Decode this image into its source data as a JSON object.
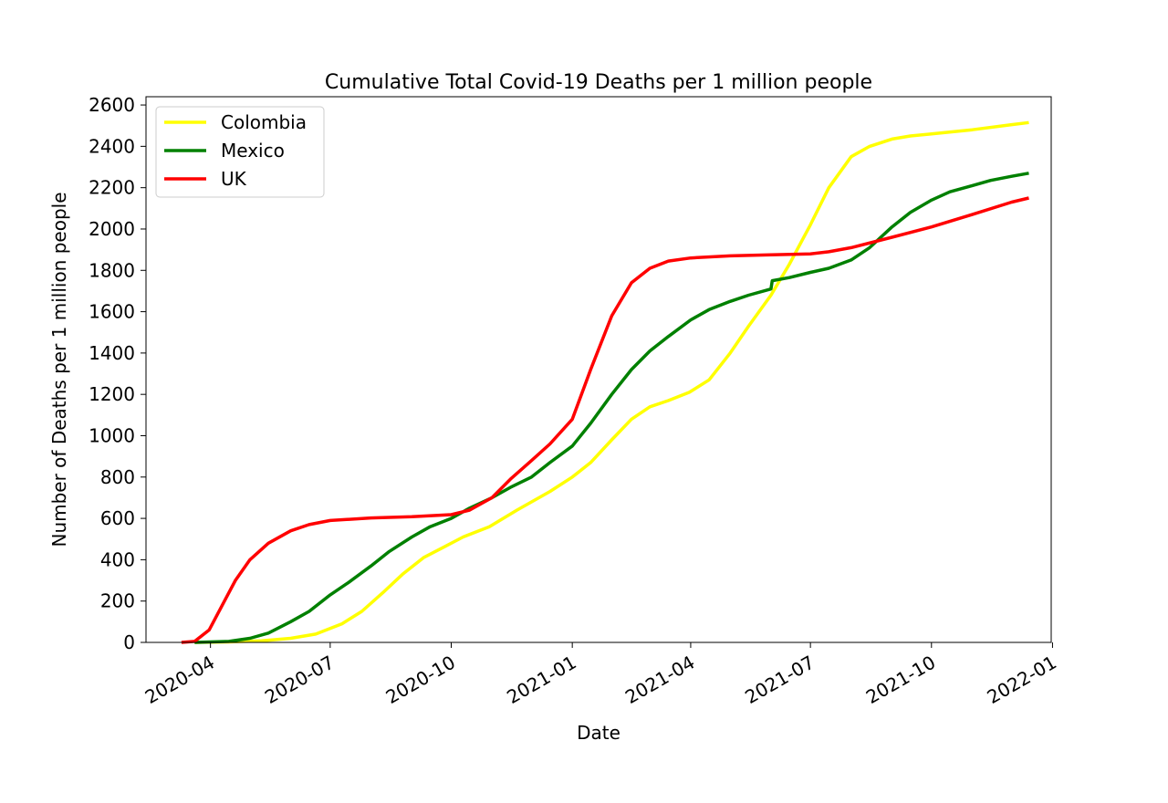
{
  "chart_data": {
    "type": "line",
    "title": "Cumulative Total Covid-19 Deaths per 1 million people",
    "xlabel": "Date",
    "ylabel": "Number of Deaths per 1 million people",
    "xlim": [
      "2020-02-12",
      "2021-12-31"
    ],
    "ylim": [
      0,
      2640
    ],
    "x_ticks": [
      "2020-04-01",
      "2020-07-01",
      "2020-10-01",
      "2021-01-01",
      "2021-04-01",
      "2021-07-01",
      "2021-10-01",
      "2022-01-01"
    ],
    "x_tick_labels": [
      "2020-04",
      "2020-07",
      "2020-10",
      "2021-01",
      "2021-04",
      "2021-07",
      "2021-10",
      "2022-01"
    ],
    "y_ticks": [
      0,
      200,
      400,
      600,
      800,
      1000,
      1200,
      1400,
      1600,
      1800,
      2000,
      2200,
      2400,
      2600
    ],
    "grid": false,
    "legend_position": "top-left",
    "series": [
      {
        "name": "Colombia",
        "color": "#ffff00",
        "points": [
          [
            "2020-03-20",
            0
          ],
          [
            "2020-04-15",
            2
          ],
          [
            "2020-05-10",
            8
          ],
          [
            "2020-06-01",
            20
          ],
          [
            "2020-06-20",
            40
          ],
          [
            "2020-07-10",
            90
          ],
          [
            "2020-07-25",
            150
          ],
          [
            "2020-08-10",
            240
          ],
          [
            "2020-08-25",
            330
          ],
          [
            "2020-09-10",
            410
          ],
          [
            "2020-09-25",
            460
          ],
          [
            "2020-10-10",
            510
          ],
          [
            "2020-10-30",
            560
          ],
          [
            "2020-11-20",
            640
          ],
          [
            "2020-12-15",
            730
          ],
          [
            "2021-01-01",
            800
          ],
          [
            "2021-01-15",
            870
          ],
          [
            "2021-01-31",
            980
          ],
          [
            "2021-02-15",
            1080
          ],
          [
            "2021-03-01",
            1140
          ],
          [
            "2021-03-15",
            1170
          ],
          [
            "2021-03-31",
            1210
          ],
          [
            "2021-04-15",
            1270
          ],
          [
            "2021-05-01",
            1400
          ],
          [
            "2021-05-15",
            1530
          ],
          [
            "2021-06-01",
            1680
          ],
          [
            "2021-06-15",
            1830
          ],
          [
            "2021-07-01",
            2020
          ],
          [
            "2021-07-15",
            2200
          ],
          [
            "2021-08-01",
            2350
          ],
          [
            "2021-08-15",
            2400
          ],
          [
            "2021-09-01",
            2435
          ],
          [
            "2021-09-15",
            2450
          ],
          [
            "2021-10-01",
            2460
          ],
          [
            "2021-11-01",
            2480
          ],
          [
            "2021-12-01",
            2505
          ],
          [
            "2021-12-14",
            2515
          ]
        ]
      },
      {
        "name": "Mexico",
        "color": "#008000",
        "points": [
          [
            "2020-03-20",
            0
          ],
          [
            "2020-04-15",
            5
          ],
          [
            "2020-05-01",
            20
          ],
          [
            "2020-05-15",
            45
          ],
          [
            "2020-06-01",
            100
          ],
          [
            "2020-06-15",
            150
          ],
          [
            "2020-07-01",
            230
          ],
          [
            "2020-07-15",
            290
          ],
          [
            "2020-08-01",
            370
          ],
          [
            "2020-08-15",
            440
          ],
          [
            "2020-09-01",
            510
          ],
          [
            "2020-09-15",
            560
          ],
          [
            "2020-10-01",
            600
          ],
          [
            "2020-10-15",
            650
          ],
          [
            "2020-11-01",
            700
          ],
          [
            "2020-11-15",
            750
          ],
          [
            "2020-12-01",
            800
          ],
          [
            "2020-12-15",
            870
          ],
          [
            "2021-01-01",
            950
          ],
          [
            "2021-01-15",
            1060
          ],
          [
            "2021-01-31",
            1200
          ],
          [
            "2021-02-15",
            1320
          ],
          [
            "2021-03-01",
            1410
          ],
          [
            "2021-03-15",
            1480
          ],
          [
            "2021-04-01",
            1560
          ],
          [
            "2021-04-15",
            1610
          ],
          [
            "2021-05-01",
            1650
          ],
          [
            "2021-05-15",
            1680
          ],
          [
            "2021-06-01",
            1710
          ],
          [
            "2021-06-02",
            1750
          ],
          [
            "2021-06-15",
            1765
          ],
          [
            "2021-07-01",
            1790
          ],
          [
            "2021-07-15",
            1810
          ],
          [
            "2021-08-01",
            1850
          ],
          [
            "2021-08-15",
            1910
          ],
          [
            "2021-09-01",
            2010
          ],
          [
            "2021-09-15",
            2080
          ],
          [
            "2021-10-01",
            2140
          ],
          [
            "2021-10-15",
            2180
          ],
          [
            "2021-11-01",
            2210
          ],
          [
            "2021-11-15",
            2235
          ],
          [
            "2021-12-01",
            2255
          ],
          [
            "2021-12-14",
            2270
          ]
        ]
      },
      {
        "name": "UK",
        "color": "#ff0000",
        "points": [
          [
            "2020-03-10",
            0
          ],
          [
            "2020-03-20",
            5
          ],
          [
            "2020-03-31",
            60
          ],
          [
            "2020-04-10",
            180
          ],
          [
            "2020-04-20",
            300
          ],
          [
            "2020-05-01",
            400
          ],
          [
            "2020-05-15",
            480
          ],
          [
            "2020-06-01",
            540
          ],
          [
            "2020-06-15",
            570
          ],
          [
            "2020-07-01",
            590
          ],
          [
            "2020-08-01",
            602
          ],
          [
            "2020-09-01",
            608
          ],
          [
            "2020-10-01",
            618
          ],
          [
            "2020-10-15",
            640
          ],
          [
            "2020-11-01",
            700
          ],
          [
            "2020-11-15",
            790
          ],
          [
            "2020-12-01",
            880
          ],
          [
            "2020-12-15",
            960
          ],
          [
            "2021-01-01",
            1080
          ],
          [
            "2021-01-15",
            1320
          ],
          [
            "2021-01-31",
            1580
          ],
          [
            "2021-02-15",
            1740
          ],
          [
            "2021-03-01",
            1810
          ],
          [
            "2021-03-15",
            1845
          ],
          [
            "2021-04-01",
            1860
          ],
          [
            "2021-05-01",
            1870
          ],
          [
            "2021-06-01",
            1875
          ],
          [
            "2021-07-01",
            1880
          ],
          [
            "2021-07-15",
            1890
          ],
          [
            "2021-08-01",
            1910
          ],
          [
            "2021-09-01",
            1960
          ],
          [
            "2021-10-01",
            2010
          ],
          [
            "2021-11-01",
            2070
          ],
          [
            "2021-12-01",
            2130
          ],
          [
            "2021-12-14",
            2150
          ]
        ]
      }
    ]
  }
}
